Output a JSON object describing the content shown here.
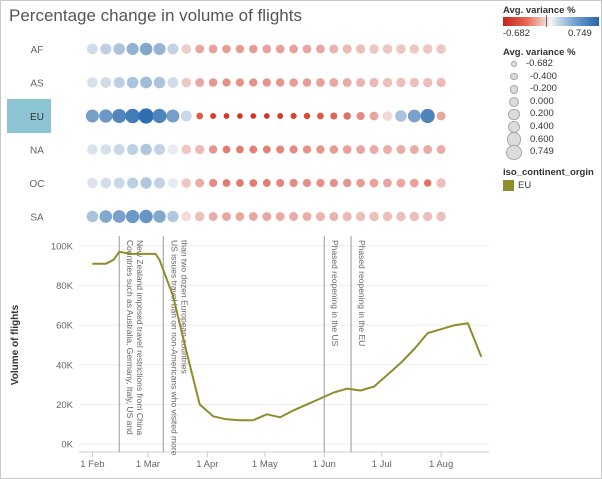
{
  "title": "Percentage change in volume of flights",
  "colors": {
    "negative": "#d7301f",
    "neutral": "#f5f5f5",
    "positive": "#2f6fb1",
    "line": "#8f8c2b",
    "highlight_label_bg": "#8cc4d4",
    "gridline": "#eeeeee",
    "annotation_line": "#9a9a9a"
  },
  "legend": {
    "color_title": "Avg. variance %",
    "color_min": "-0.682",
    "color_max": "0.749",
    "size_title": "Avg. variance %",
    "size_items": [
      "-0.682",
      "-0.400",
      "-0.200",
      "0.000",
      "0.200",
      "0.400",
      "0.600",
      "0.749"
    ],
    "series_title": "iso_continent_orgin",
    "series_item": "EU"
  },
  "chart_data": [
    {
      "type": "scatter",
      "subtype": "bubble-heatmap",
      "rows": [
        "AF",
        "AS",
        "EU",
        "NA",
        "OC",
        "SA"
      ],
      "highlighted_row": "EU",
      "x_dates": [
        "2020-02-01",
        "2020-02-08",
        "2020-02-15",
        "2020-02-22",
        "2020-02-29",
        "2020-03-07",
        "2020-03-14",
        "2020-03-21",
        "2020-03-28",
        "2020-04-04",
        "2020-04-11",
        "2020-04-18",
        "2020-04-25",
        "2020-05-02",
        "2020-05-09",
        "2020-05-16",
        "2020-05-23",
        "2020-05-30",
        "2020-06-06",
        "2020-06-13",
        "2020-06-20",
        "2020-06-27",
        "2020-07-04",
        "2020-07-11",
        "2020-07-18",
        "2020-07-25",
        "2020-08-01"
      ],
      "values": {
        "AF": [
          0.08,
          0.14,
          0.2,
          0.3,
          0.36,
          0.28,
          0.12,
          -0.08,
          -0.2,
          -0.22,
          -0.24,
          -0.24,
          -0.24,
          -0.22,
          -0.22,
          -0.22,
          -0.2,
          -0.2,
          -0.16,
          -0.14,
          -0.12,
          -0.1,
          -0.1,
          -0.1,
          -0.1,
          -0.1,
          -0.1
        ],
        "AS": [
          0.06,
          0.08,
          0.14,
          0.2,
          0.24,
          0.2,
          0.08,
          -0.1,
          -0.2,
          -0.26,
          -0.28,
          -0.28,
          -0.28,
          -0.26,
          -0.26,
          -0.24,
          -0.24,
          -0.22,
          -0.2,
          -0.18,
          -0.16,
          -0.14,
          -0.12,
          -0.12,
          -0.12,
          -0.12,
          -0.14
        ],
        "EU": [
          0.42,
          0.46,
          0.58,
          0.65,
          0.75,
          0.6,
          0.42,
          0.1,
          -0.5,
          -0.62,
          -0.66,
          -0.68,
          -0.68,
          -0.66,
          -0.64,
          -0.6,
          -0.56,
          -0.5,
          -0.46,
          -0.4,
          -0.3,
          -0.2,
          -0.05,
          0.2,
          0.4,
          0.6,
          -0.2
        ],
        "NA": [
          0.05,
          0.06,
          0.1,
          0.14,
          0.18,
          0.12,
          0.02,
          -0.1,
          -0.14,
          -0.26,
          -0.36,
          -0.36,
          -0.34,
          -0.34,
          -0.32,
          -0.3,
          -0.28,
          -0.26,
          -0.24,
          -0.22,
          -0.2,
          -0.18,
          -0.18,
          -0.18,
          -0.18,
          -0.18,
          -0.18
        ],
        "OC": [
          0.05,
          0.07,
          0.1,
          0.14,
          0.18,
          0.12,
          0.02,
          -0.1,
          -0.18,
          -0.3,
          -0.36,
          -0.36,
          -0.36,
          -0.34,
          -0.32,
          -0.3,
          -0.28,
          -0.28,
          -0.28,
          -0.26,
          -0.24,
          -0.22,
          -0.2,
          -0.2,
          -0.22,
          -0.4,
          -0.12
        ],
        "SA": [
          0.2,
          0.36,
          0.4,
          0.46,
          0.48,
          0.36,
          0.18,
          -0.04,
          -0.12,
          -0.18,
          -0.2,
          -0.2,
          -0.2,
          -0.2,
          -0.18,
          -0.18,
          -0.18,
          -0.16,
          -0.16,
          -0.14,
          -0.12,
          -0.12,
          -0.12,
          -0.12,
          -0.12,
          -0.12,
          -0.12
        ]
      },
      "color_range": [
        -0.682,
        0.749
      ]
    },
    {
      "type": "line",
      "series": [
        {
          "name": "EU",
          "points": [
            [
              "2020-02-01",
              91000
            ],
            [
              "2020-02-08",
              91000
            ],
            [
              "2020-02-12",
              93000
            ],
            [
              "2020-02-15",
              97000
            ],
            [
              "2020-02-22",
              96000
            ],
            [
              "2020-02-29",
              96000
            ],
            [
              "2020-03-05",
              96000
            ],
            [
              "2020-03-07",
              93000
            ],
            [
              "2020-03-14",
              75000
            ],
            [
              "2020-03-21",
              47000
            ],
            [
              "2020-03-28",
              20000
            ],
            [
              "2020-04-04",
              14000
            ],
            [
              "2020-04-11",
              12500
            ],
            [
              "2020-04-18",
              12000
            ],
            [
              "2020-04-25",
              12000
            ],
            [
              "2020-05-02",
              15000
            ],
            [
              "2020-05-09",
              13500
            ],
            [
              "2020-05-16",
              17000
            ],
            [
              "2020-05-23",
              20000
            ],
            [
              "2020-05-30",
              23000
            ],
            [
              "2020-06-06",
              26000
            ],
            [
              "2020-06-13",
              28000
            ],
            [
              "2020-06-20",
              27000
            ],
            [
              "2020-06-27",
              29000
            ],
            [
              "2020-07-04",
              35000
            ],
            [
              "2020-07-11",
              41000
            ],
            [
              "2020-07-18",
              48000
            ],
            [
              "2020-07-25",
              56000
            ],
            [
              "2020-08-01",
              58000
            ],
            [
              "2020-08-08",
              60000
            ],
            [
              "2020-08-15",
              61000
            ],
            [
              "2020-08-22",
              44000
            ]
          ]
        }
      ],
      "x_ticks": [
        "1 Feb",
        "1 Mar",
        "1 Apr",
        "1 May",
        "1 Jun",
        "1 Jul",
        "1 Aug"
      ],
      "x_tick_dates": [
        "2020-02-01",
        "2020-03-01",
        "2020-04-01",
        "2020-05-01",
        "2020-06-01",
        "2020-07-01",
        "2020-08-01"
      ],
      "x_range": [
        "2020-01-25",
        "2020-08-26"
      ],
      "y_ticks": [
        "0K",
        "20K",
        "40K",
        "60K",
        "80K",
        "100K"
      ],
      "y_tick_values": [
        0,
        20000,
        40000,
        60000,
        80000,
        100000
      ],
      "ylim": [
        0,
        100000
      ],
      "ylabel": "Volume of flights",
      "annotations": [
        {
          "date": "2020-02-15",
          "text": "Countries such as Australia, Germany, Italy, US and New Zealand imposed travel restrictions from China"
        },
        {
          "date": "2020-03-09",
          "text": "US issues travel ban on non-Americans who visited more than two dozen European countries"
        },
        {
          "date": "2020-06-01",
          "text": "Phased reopening in the US"
        },
        {
          "date": "2020-06-15",
          "text": "Phased reopening in the EU"
        }
      ]
    }
  ]
}
